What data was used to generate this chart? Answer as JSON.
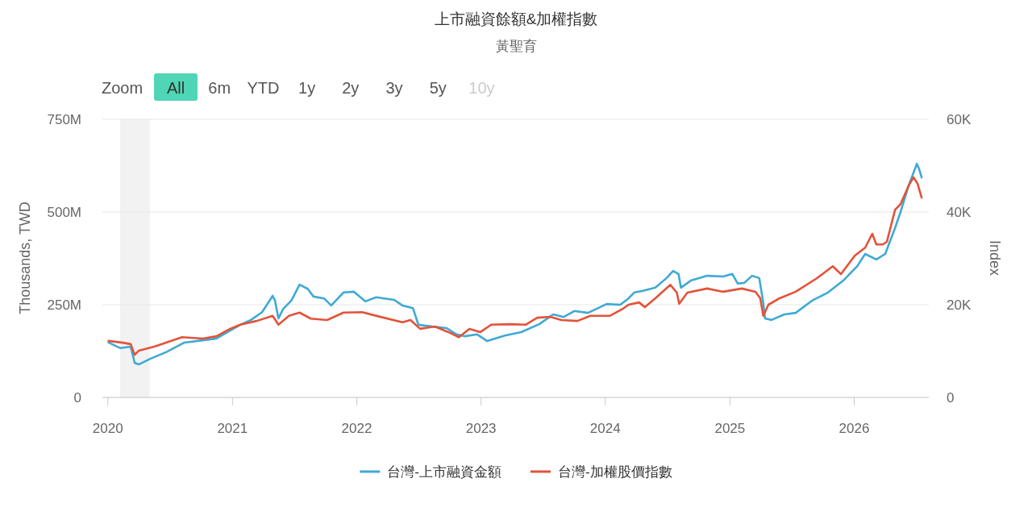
{
  "chart_data": {
    "type": "line",
    "title": "上市融資餘額&加權指數",
    "subtitle": "黃聖育",
    "ylabel": "Thousands, TWD",
    "y2label": "Index",
    "annotations": [
      "Zoom",
      "All",
      "6m",
      "YTD",
      "1y",
      "2y",
      "3y",
      "5y",
      "10y"
    ],
    "xlim": [
      "2019-12-16",
      "2026-08-08"
    ],
    "xticks": [
      "2020",
      "2021",
      "2022",
      "2023",
      "2024",
      "2025",
      "2026"
    ],
    "ylim": [
      0,
      750000000
    ],
    "yticks": [
      0,
      {
        "value": 250000000,
        "label": "250M"
      },
      {
        "value": 500000000,
        "label": "500M"
      },
      {
        "value": 750000000,
        "label": "750M"
      }
    ],
    "y2lim": [
      0,
      60000
    ],
    "y2ticks": [
      0,
      {
        "value": 20000,
        "label": "20K"
      },
      {
        "value": 40000,
        "label": "40K"
      },
      {
        "value": 60000,
        "label": "60K"
      }
    ],
    "grid": "y",
    "legend": "bottom",
    "bands": [
      {
        "axis": "x",
        "from": "2020-02-06",
        "to": "2020-05-03",
        "color": "#f2f2f2"
      }
    ],
    "series": [
      {
        "name": "台灣-上市融資金額",
        "color": "#3fa9d5",
        "x": [
          "2020-01-03",
          "2020-02-07",
          "2020-03-08",
          "2020-03-20",
          "2020-04-01",
          "2020-05-04",
          "2020-06-20",
          "2020-08-13",
          "2020-10-06",
          "2020-11-15",
          "2020-12-25",
          "2021-01-24",
          "2021-02-24",
          "2021-03-29",
          "2021-04-29",
          "2021-05-06",
          "2021-05-16",
          "2021-05-30",
          "2021-06-23",
          "2021-07-17",
          "2021-08-10",
          "2021-08-27",
          "2021-09-27",
          "2021-10-18",
          "2021-11-23",
          "2021-12-24",
          "2022-01-26",
          "2022-02-27",
          "2022-04-21",
          "2022-05-15",
          "2022-06-15",
          "2022-07-01",
          "2022-08-11",
          "2022-09-22",
          "2022-10-21",
          "2022-11-14",
          "2022-12-21",
          "2023-01-19",
          "2023-03-12",
          "2023-04-29",
          "2023-06-22",
          "2023-08-01",
          "2023-09-01",
          "2023-10-02",
          "2023-11-11",
          "2024-01-05",
          "2024-02-14",
          "2024-03-09",
          "2024-03-26",
          "2024-04-18",
          "2024-05-27",
          "2024-06-29",
          "2024-07-18",
          "2024-08-03",
          "2024-08-10",
          "2024-09-08",
          "2024-10-26",
          "2024-12-12",
          "2025-01-08",
          "2025-01-24",
          "2025-02-12",
          "2025-03-07",
          "2025-03-28",
          "2025-04-08",
          "2025-04-14",
          "2025-05-03",
          "2025-06-10",
          "2025-07-13",
          "2025-08-30",
          "2025-10-16",
          "2025-12-02",
          "2026-01-10",
          "2026-02-02",
          "2026-03-07",
          "2026-04-02",
          "2026-05-01",
          "2026-05-17",
          "2026-06-10",
          "2026-07-04",
          "2026-07-11",
          "2026-07-18"
        ],
        "values": [
          148000000,
          133000000,
          137000000,
          93000000,
          89000000,
          104000000,
          122000000,
          148000000,
          154000000,
          159000000,
          180000000,
          196000000,
          209000000,
          230000000,
          274000000,
          261000000,
          213000000,
          239000000,
          261000000,
          304000000,
          293000000,
          272000000,
          267000000,
          248000000,
          283000000,
          285000000,
          259000000,
          270000000,
          263000000,
          248000000,
          241000000,
          196000000,
          191000000,
          187000000,
          170000000,
          165000000,
          170000000,
          152000000,
          167000000,
          176000000,
          198000000,
          224000000,
          217000000,
          233000000,
          228000000,
          252000000,
          250000000,
          267000000,
          283000000,
          287000000,
          296000000,
          322000000,
          341000000,
          333000000,
          296000000,
          315000000,
          328000000,
          326000000,
          333000000,
          307000000,
          309000000,
          328000000,
          322000000,
          261000000,
          213000000,
          209000000,
          224000000,
          228000000,
          261000000,
          283000000,
          317000000,
          354000000,
          387000000,
          372000000,
          387000000,
          457000000,
          500000000,
          572000000,
          630000000,
          615000000,
          593000000
        ]
      },
      {
        "name": "台灣-加權股價指數",
        "color": "#e2533a",
        "axis": "y2",
        "x": [
          "2020-01-03",
          "2020-02-14",
          "2020-03-08",
          "2020-03-20",
          "2020-04-01",
          "2020-05-18",
          "2020-08-06",
          "2020-10-06",
          "2020-11-15",
          "2020-12-25",
          "2021-01-24",
          "2021-03-13",
          "2021-04-29",
          "2021-05-16",
          "2021-06-16",
          "2021-07-17",
          "2021-08-19",
          "2021-10-06",
          "2021-11-23",
          "2022-01-17",
          "2022-03-05",
          "2022-05-15",
          "2022-06-08",
          "2022-07-06",
          "2022-08-18",
          "2022-09-27",
          "2022-10-28",
          "2022-11-28",
          "2022-12-30",
          "2023-01-31",
          "2023-03-26",
          "2023-05-13",
          "2023-06-15",
          "2023-07-23",
          "2023-08-25",
          "2023-10-11",
          "2023-11-18",
          "2024-01-14",
          "2024-02-21",
          "2024-03-09",
          "2024-04-09",
          "2024-04-26",
          "2024-05-27",
          "2024-07-10",
          "2024-07-29",
          "2024-08-05",
          "2024-08-29",
          "2024-10-26",
          "2024-12-12",
          "2025-02-05",
          "2025-03-17",
          "2025-03-31",
          "2025-04-09",
          "2025-04-24",
          "2025-05-27",
          "2025-07-13",
          "2025-09-13",
          "2025-10-30",
          "2025-11-23",
          "2026-01-03",
          "2026-02-02",
          "2026-02-23",
          "2026-03-07",
          "2026-03-26",
          "2026-04-07",
          "2026-05-01",
          "2026-05-17",
          "2026-06-10",
          "2026-06-24",
          "2026-07-06",
          "2026-07-18"
        ],
        "values": [
          12200,
          11800,
          11500,
          9200,
          10100,
          11000,
          13000,
          12700,
          13200,
          14800,
          15700,
          16500,
          17600,
          15700,
          17600,
          18300,
          17000,
          16700,
          18300,
          18400,
          17500,
          16200,
          16700,
          14800,
          15300,
          14100,
          13000,
          14800,
          14100,
          15700,
          15800,
          15700,
          17200,
          17400,
          16700,
          16500,
          17600,
          17600,
          19100,
          20000,
          20500,
          19500,
          21400,
          24300,
          22600,
          20200,
          22600,
          23500,
          22800,
          23500,
          22800,
          21400,
          17600,
          20000,
          21400,
          22800,
          25700,
          28300,
          26600,
          30600,
          32300,
          35300,
          33000,
          33000,
          33600,
          40500,
          41700,
          45700,
          47500,
          46100,
          43100
        ]
      }
    ]
  }
}
